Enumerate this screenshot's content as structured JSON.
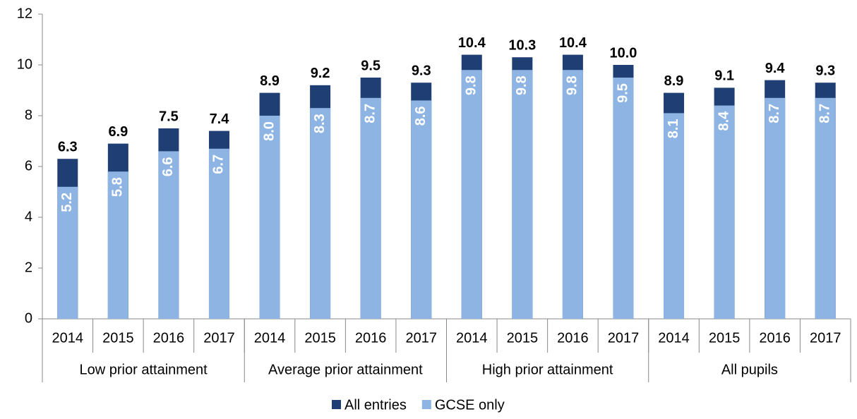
{
  "chart_data": {
    "type": "bar",
    "categories": [
      "2014",
      "2015",
      "2016",
      "2017",
      "2014",
      "2015",
      "2016",
      "2017",
      "2014",
      "2015",
      "2016",
      "2017",
      "2014",
      "2015",
      "2016",
      "2017"
    ],
    "groups": [
      "Low prior attainment",
      "Average prior attainment",
      "High prior attainment",
      "All pupils"
    ],
    "series": [
      {
        "name": "All entries",
        "color": "#1f3f74",
        "values": [
          6.3,
          6.9,
          7.5,
          7.4,
          8.9,
          9.2,
          9.5,
          9.3,
          10.4,
          10.3,
          10.4,
          10.0,
          8.9,
          9.1,
          9.4,
          9.3
        ],
        "value_labels": [
          "6.3",
          "6.9",
          "7.5",
          "7.4",
          "8.9",
          "9.2",
          "9.5",
          "9.3",
          "10.4",
          "10.3",
          "10.4",
          "10.0",
          "8.9",
          "9.1",
          "9.4",
          "9.3"
        ]
      },
      {
        "name": "GCSE only",
        "color": "#8eb4e3",
        "values": [
          5.2,
          5.8,
          6.6,
          6.7,
          8.0,
          8.3,
          8.7,
          8.6,
          9.8,
          9.8,
          9.8,
          9.5,
          8.1,
          8.4,
          8.7,
          8.7
        ],
        "value_labels": [
          "5.2",
          "5.8",
          "6.6",
          "6.7",
          "8.0",
          "8.3",
          "8.7",
          "8.6",
          "9.8",
          "9.8",
          "9.8",
          "9.5",
          "8.1",
          "8.4",
          "8.7",
          "8.7"
        ]
      }
    ],
    "ylim": [
      0,
      12
    ],
    "yticks": [
      0,
      2,
      4,
      6,
      8,
      10,
      12
    ],
    "grid": false,
    "legend": "bottom"
  }
}
